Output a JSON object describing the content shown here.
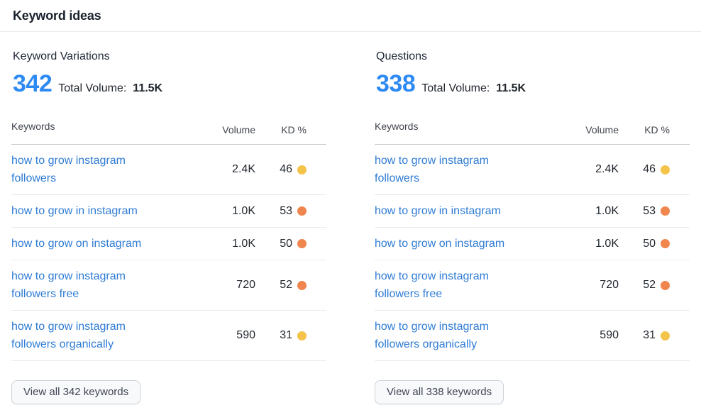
{
  "panel": {
    "title": "Keyword ideas"
  },
  "colors": {
    "count_blue": "#2e8af3",
    "link_blue": "#2f7cd4",
    "kd_yellow": "#f4c34a",
    "kd_orange": "#f0854e"
  },
  "sections": [
    {
      "heading": "Keyword Variations",
      "count": "342",
      "total_volume_label": "Total Volume:",
      "total_volume_value": "11.5K",
      "table": {
        "columns": [
          "Keywords",
          "Volume",
          "KD %"
        ],
        "rows": [
          {
            "keyword": "how to grow instagram followers",
            "volume": "2.4K",
            "kd": "46",
            "kd_level": "possible",
            "kd_color": "#f4c34a"
          },
          {
            "keyword": "how to grow in instagram",
            "volume": "1.0K",
            "kd": "53",
            "kd_level": "difficult",
            "kd_color": "#f0854e"
          },
          {
            "keyword": "how to grow on instagram",
            "volume": "1.0K",
            "kd": "50",
            "kd_level": "difficult",
            "kd_color": "#f0854e"
          },
          {
            "keyword": "how to grow instagram followers free",
            "volume": "720",
            "kd": "52",
            "kd_level": "difficult",
            "kd_color": "#f0854e"
          },
          {
            "keyword": "how to grow instagram followers organically",
            "volume": "590",
            "kd": "31",
            "kd_level": "possible",
            "kd_color": "#f4c34a"
          }
        ]
      },
      "view_all_label": "View all 342 keywords"
    },
    {
      "heading": "Questions",
      "count": "338",
      "total_volume_label": "Total Volume:",
      "total_volume_value": "11.5K",
      "table": {
        "columns": [
          "Keywords",
          "Volume",
          "KD %"
        ],
        "rows": [
          {
            "keyword": "how to grow instagram followers",
            "volume": "2.4K",
            "kd": "46",
            "kd_level": "possible",
            "kd_color": "#f4c34a"
          },
          {
            "keyword": "how to grow in instagram",
            "volume": "1.0K",
            "kd": "53",
            "kd_level": "difficult",
            "kd_color": "#f0854e"
          },
          {
            "keyword": "how to grow on instagram",
            "volume": "1.0K",
            "kd": "50",
            "kd_level": "difficult",
            "kd_color": "#f0854e"
          },
          {
            "keyword": "how to grow instagram followers free",
            "volume": "720",
            "kd": "52",
            "kd_level": "difficult",
            "kd_color": "#f0854e"
          },
          {
            "keyword": "how to grow instagram followers organically",
            "volume": "590",
            "kd": "31",
            "kd_level": "possible",
            "kd_color": "#f4c34a"
          }
        ]
      },
      "view_all_label": "View all 338 keywords"
    }
  ]
}
